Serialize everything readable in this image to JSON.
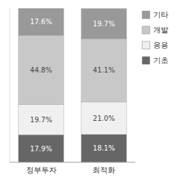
{
  "chart_data": {
    "type": "bar",
    "stacked": true,
    "data_labels": true,
    "tick_labels": "x",
    "legend": "right",
    "categories": [
      "정부투자",
      "최적화"
    ],
    "ylim": [
      0,
      100
    ],
    "series": [
      {
        "name": "기초",
        "color": "#666666",
        "values": [
          17.9,
          18.1
        ],
        "value_labels": [
          "17.9%",
          "18.1%"
        ]
      },
      {
        "name": "응용",
        "color": "#f0f0f0",
        "values": [
          19.7,
          21.0
        ],
        "value_labels": [
          "19.7%",
          "21.0%"
        ]
      },
      {
        "name": "개발",
        "color": "#c8c8c8",
        "values": [
          44.8,
          41.1
        ],
        "value_labels": [
          "44.8%",
          "41.1%"
        ]
      },
      {
        "name": "기타",
        "color": "#999999",
        "values": [
          17.6,
          19.7
        ],
        "value_labels": [
          "17.6%",
          "19.7%"
        ]
      }
    ]
  }
}
